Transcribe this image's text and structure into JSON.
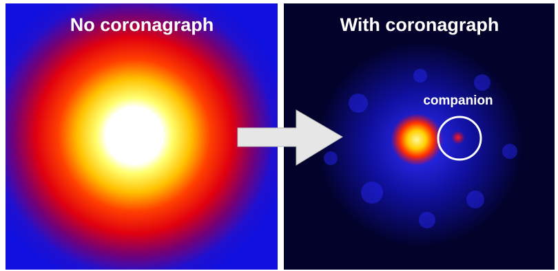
{
  "panels": [
    {
      "title": "No coronagraph"
    },
    {
      "title": "With coronagraph",
      "annotation": "companion"
    }
  ]
}
